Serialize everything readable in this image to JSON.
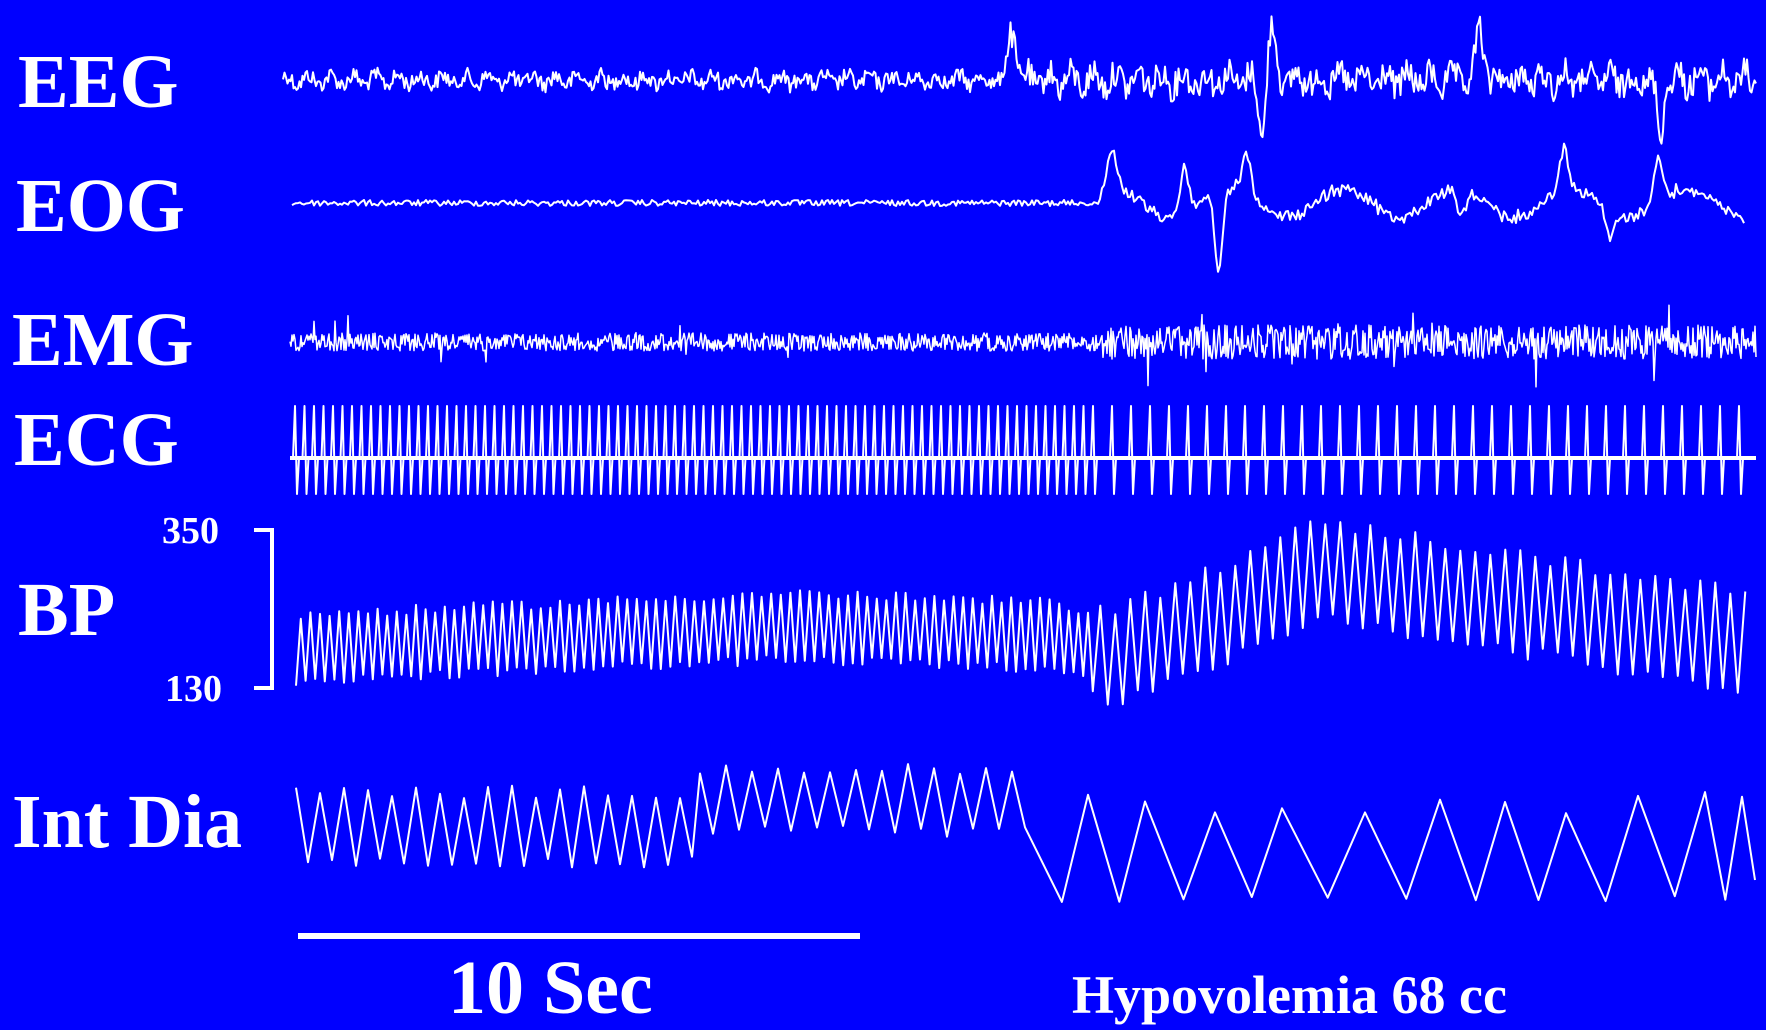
{
  "chart_data": {
    "type": "line",
    "colors": {
      "background": "#0000ff",
      "trace": "#ffffff"
    },
    "channels": [
      {
        "label": "EEG"
      },
      {
        "label": "EOG"
      },
      {
        "label": "EMG"
      },
      {
        "label": "ECG"
      },
      {
        "label": "BP",
        "scale_top": "350",
        "scale_bottom": "130",
        "ylim": [
          130,
          350
        ]
      },
      {
        "label": "Int Dia"
      }
    ],
    "scale_bar_label": "10 Sec",
    "annotation": "Hypovolemia 68 cc"
  }
}
